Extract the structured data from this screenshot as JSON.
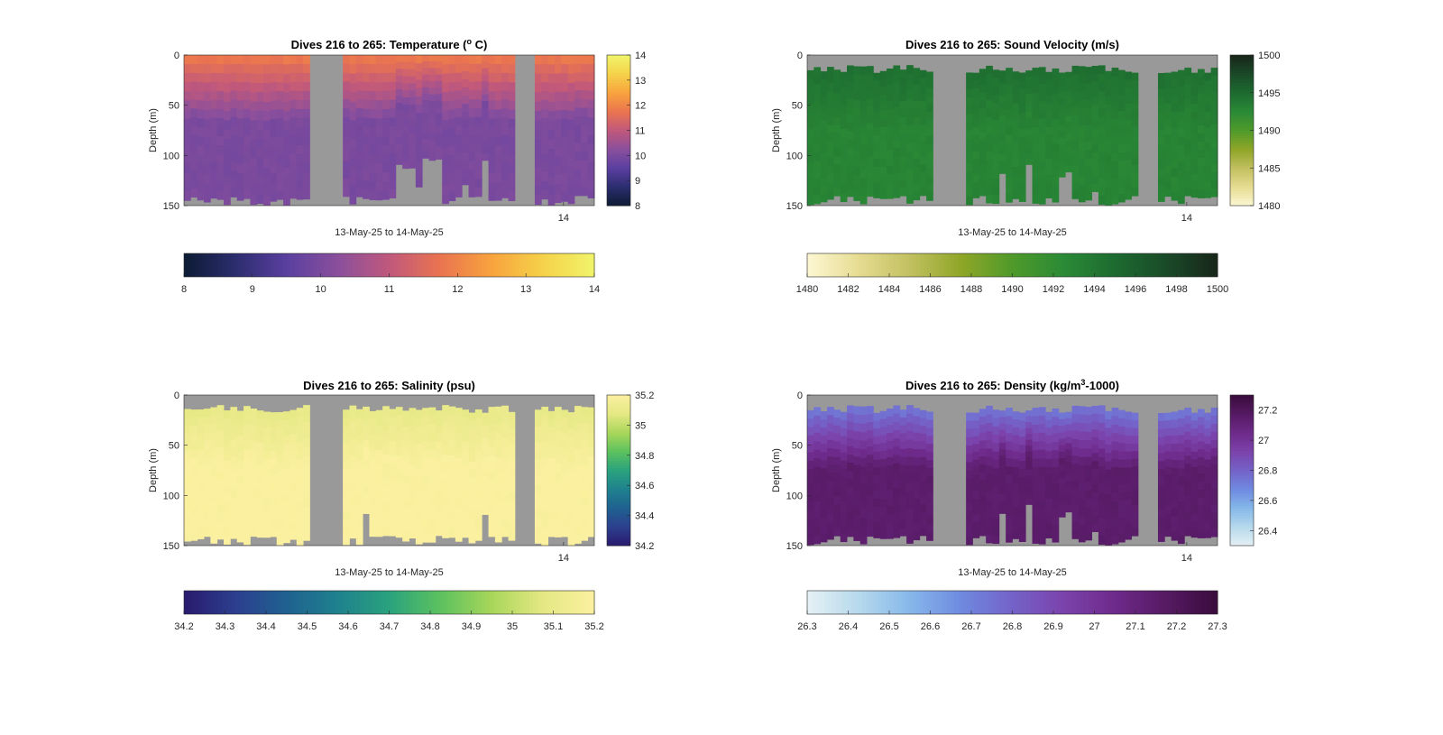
{
  "chart_data": [
    {
      "type": "heatmap",
      "title": "Dives 216 to 265: Temperature (",
      "title_sup": "o",
      "title_end": " C)",
      "ylabel": "Depth (m)",
      "xlabel": "13-May-25 to 14-May-25",
      "y_ticks": [
        "0",
        "50",
        "100",
        "150"
      ],
      "x_tick": "14",
      "ylim": [
        0,
        150
      ],
      "colorbar_right": {
        "min": 8,
        "max": 14,
        "ticks": [
          "8",
          "9",
          "10",
          "11",
          "12",
          "13",
          "14"
        ]
      },
      "colorbar_bottom": {
        "min": 8,
        "max": 14,
        "ticks": [
          "8",
          "9",
          "10",
          "11",
          "12",
          "13",
          "14"
        ]
      },
      "colormap": [
        "#0d1b33",
        "#2b2d6e",
        "#5a3fa0",
        "#8a4f9c",
        "#c0587c",
        "#ea7450",
        "#f8a33e",
        "#f5d24a",
        "#f0f46a"
      ],
      "surface_value": 11.8,
      "bottom_value": 10.0
    },
    {
      "type": "heatmap",
      "title": "Dives 216 to 265: Sound Velocity (m/s)",
      "ylabel": "Depth (m)",
      "xlabel": "13-May-25 to 14-May-25",
      "y_ticks": [
        "0",
        "50",
        "100",
        "150"
      ],
      "x_tick": "14",
      "ylim": [
        0,
        150
      ],
      "colorbar_right": {
        "min": 1480,
        "max": 1500,
        "ticks": [
          "1480",
          "1485",
          "1490",
          "1495",
          "1500"
        ]
      },
      "colorbar_bottom": {
        "min": 1480,
        "max": 1500,
        "ticks": [
          "1480",
          "1482",
          "1484",
          "1486",
          "1488",
          "1490",
          "1492",
          "1494",
          "1496",
          "1498",
          "1500"
        ]
      },
      "colormap": [
        "#fdf7d3",
        "#e6dc92",
        "#c2c060",
        "#8fa628",
        "#4f9a2a",
        "#2a8a36",
        "#1d6b30",
        "#1a4a28",
        "#18261a"
      ],
      "surface_value": 1494.5,
      "bottom_value": 1493.0
    },
    {
      "type": "heatmap",
      "title": "Dives 216 to 265: Salinity (psu)",
      "ylabel": "Depth (m)",
      "xlabel": "13-May-25 to 14-May-25",
      "y_ticks": [
        "0",
        "50",
        "100",
        "150"
      ],
      "x_tick": "14",
      "ylim": [
        0,
        150
      ],
      "colorbar_right": {
        "min": 34.2,
        "max": 35.2,
        "ticks": [
          "34.2",
          "34.4",
          "34.6",
          "34.8",
          "35",
          "35.2"
        ]
      },
      "colorbar_bottom": {
        "min": 34.2,
        "max": 35.2,
        "ticks": [
          "34.2",
          "34.3",
          "34.4",
          "34.5",
          "34.6",
          "34.7",
          "34.8",
          "34.9",
          "35",
          "35.1",
          "35.2"
        ]
      },
      "colormap": [
        "#2a1a6e",
        "#2c3f8e",
        "#1f6190",
        "#1f818e",
        "#2aa27d",
        "#5cc15f",
        "#a8d65a",
        "#e4e883",
        "#fbf0a0"
      ],
      "surface_value": 35.1,
      "bottom_value": 35.2
    },
    {
      "type": "heatmap",
      "title": "Dives 216 to 265: Density (kg/m",
      "title_sup": "3",
      "title_end": "-1000)",
      "ylabel": "Depth (m)",
      "xlabel": "13-May-25 to 14-May-25",
      "y_ticks": [
        "0",
        "50",
        "100",
        "150"
      ],
      "x_tick": "14",
      "ylim": [
        0,
        150
      ],
      "colorbar_right": {
        "min": 26.3,
        "max": 27.3,
        "ticks": [
          "26.4",
          "26.6",
          "26.8",
          "27",
          "27.2"
        ]
      },
      "colorbar_bottom": {
        "min": 26.3,
        "max": 27.3,
        "ticks": [
          "26.3",
          "26.4",
          "26.5",
          "26.6",
          "26.7",
          "26.8",
          "26.9",
          "27",
          "27.1",
          "27.2",
          "27.3"
        ]
      },
      "colormap": [
        "#e6f1f5",
        "#b6d9ec",
        "#86b8ea",
        "#6f8ae0",
        "#7462c8",
        "#7b43ab",
        "#6e2a8a",
        "#561a63",
        "#3a0c3c"
      ],
      "surface_value": 26.75,
      "bottom_value": 27.15
    }
  ],
  "colors": {
    "nodata": "#999999",
    "axis": "#262626"
  }
}
